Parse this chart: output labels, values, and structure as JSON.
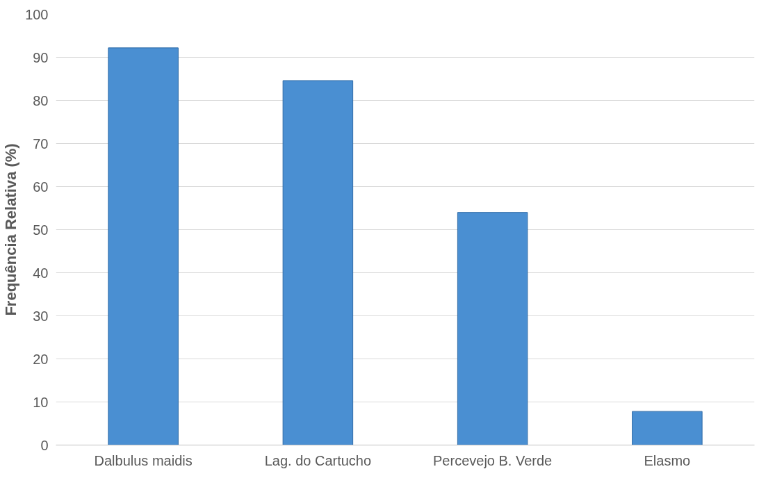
{
  "chart_data": {
    "type": "bar",
    "ylabel": "Frequência Relativa (%)",
    "categories": [
      "Dalbulus maidis",
      "Lag. do Cartucho",
      "Percevejo B. Verde",
      "Elasmo"
    ],
    "values": [
      92.2,
      84.6,
      54,
      7.8
    ],
    "color": "#4a8fd2",
    "ylim": [
      0,
      100
    ],
    "yticks": [
      0,
      10,
      20,
      30,
      40,
      50,
      60,
      70,
      80,
      90,
      100
    ],
    "grid": "y"
  }
}
